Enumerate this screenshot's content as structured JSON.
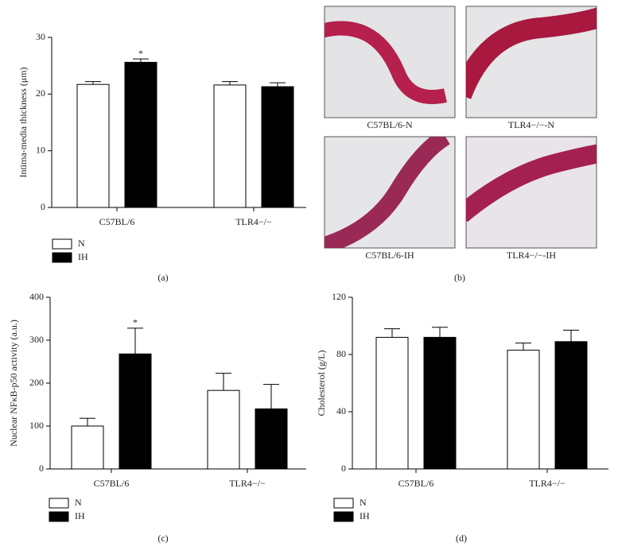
{
  "chart_data": [
    {
      "type": "bar",
      "label": "(a)",
      "y_label": "Intima-media thickness (μm)",
      "categories": [
        "C57BL/6",
        "TLR4−/−"
      ],
      "series": [
        {
          "name": "N",
          "color": "#ffffff",
          "values": [
            21.7,
            21.6
          ],
          "errors": [
            0.5,
            0.6
          ]
        },
        {
          "name": "IH",
          "color": "#000000",
          "values": [
            25.6,
            21.3
          ],
          "errors": [
            0.6,
            0.7
          ]
        }
      ],
      "annotations": [
        {
          "text": "*",
          "series": 1,
          "category": 0
        }
      ],
      "ylim": [
        0,
        30
      ],
      "yticks": [
        0,
        10,
        20,
        30
      ]
    },
    {
      "type": "bar",
      "label": "(c)",
      "y_label": "Nuclear NFκB-p50 activity (a.u.)",
      "categories": [
        "C57BL/6",
        "TLR4−/−"
      ],
      "series": [
        {
          "name": "N",
          "color": "#ffffff",
          "values": [
            100,
            183
          ],
          "errors": [
            18,
            40
          ]
        },
        {
          "name": "IH",
          "color": "#000000",
          "values": [
            268,
            140
          ],
          "errors": [
            60,
            57
          ]
        }
      ],
      "annotations": [
        {
          "text": "*",
          "series": 1,
          "category": 0
        }
      ],
      "ylim": [
        0,
        400
      ],
      "yticks": [
        0,
        100,
        200,
        300,
        400
      ]
    },
    {
      "type": "bar",
      "label": "(d)",
      "y_label": "Cholesterol (g/L)",
      "categories": [
        "C57BL/6",
        "TLR4−/−"
      ],
      "series": [
        {
          "name": "N",
          "color": "#ffffff",
          "values": [
            92,
            83
          ],
          "errors": [
            6,
            5
          ]
        },
        {
          "name": "IH",
          "color": "#000000",
          "values": [
            92,
            89
          ],
          "errors": [
            7,
            8
          ]
        }
      ],
      "annotations": [],
      "ylim": [
        0,
        120
      ],
      "yticks": [
        0,
        40,
        80,
        120
      ]
    }
  ],
  "images": {
    "label": "(b)",
    "captions": [
      "C57BL/6-N",
      "TLR4−/−-N",
      "C57BL/6-IH",
      "TLR4−/−-IH"
    ]
  }
}
